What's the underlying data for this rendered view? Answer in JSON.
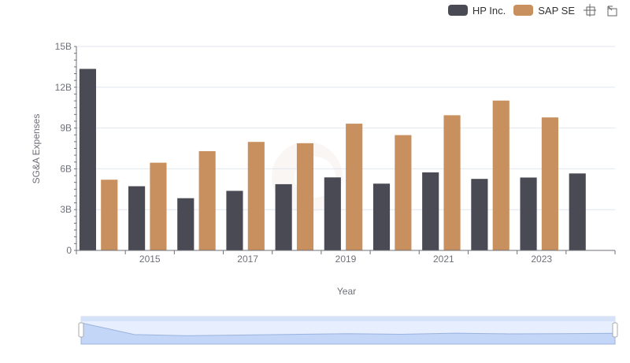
{
  "legend": {
    "items": [
      {
        "name": "HP Inc.",
        "color": "#4a4a55"
      },
      {
        "name": "SAP SE",
        "color": "#c8905e"
      }
    ],
    "toolbox": [
      "zoom-icon",
      "restore-icon"
    ]
  },
  "chart_data": {
    "type": "bar",
    "x": [
      2014,
      2015,
      2016,
      2017,
      2018,
      2019,
      2020,
      2021,
      2022,
      2023,
      2024
    ],
    "x_tick_labels": [
      "2015",
      "2017",
      "2019",
      "2021",
      "2023"
    ],
    "xlabel": "Year",
    "ylabel": "SG&A Expenses",
    "ylim": [
      0,
      15
    ],
    "y_tick_labels": [
      "0",
      "3B",
      "6B",
      "9B",
      "12B",
      "15B"
    ],
    "grid": true,
    "legend_position": "top-right",
    "series": [
      {
        "name": "HP Inc.",
        "color": "#4a4a55",
        "values": [
          13.35,
          4.72,
          3.84,
          4.38,
          4.87,
          5.37,
          4.91,
          5.74,
          5.26,
          5.36,
          5.66
        ]
      },
      {
        "name": "SAP SE",
        "color": "#c8905e",
        "values": [
          5.2,
          6.45,
          7.3,
          7.98,
          7.88,
          9.32,
          8.48,
          9.94,
          11.02,
          9.78,
          null
        ]
      }
    ],
    "data_zoom": {
      "start": 0,
      "end": 100
    }
  }
}
